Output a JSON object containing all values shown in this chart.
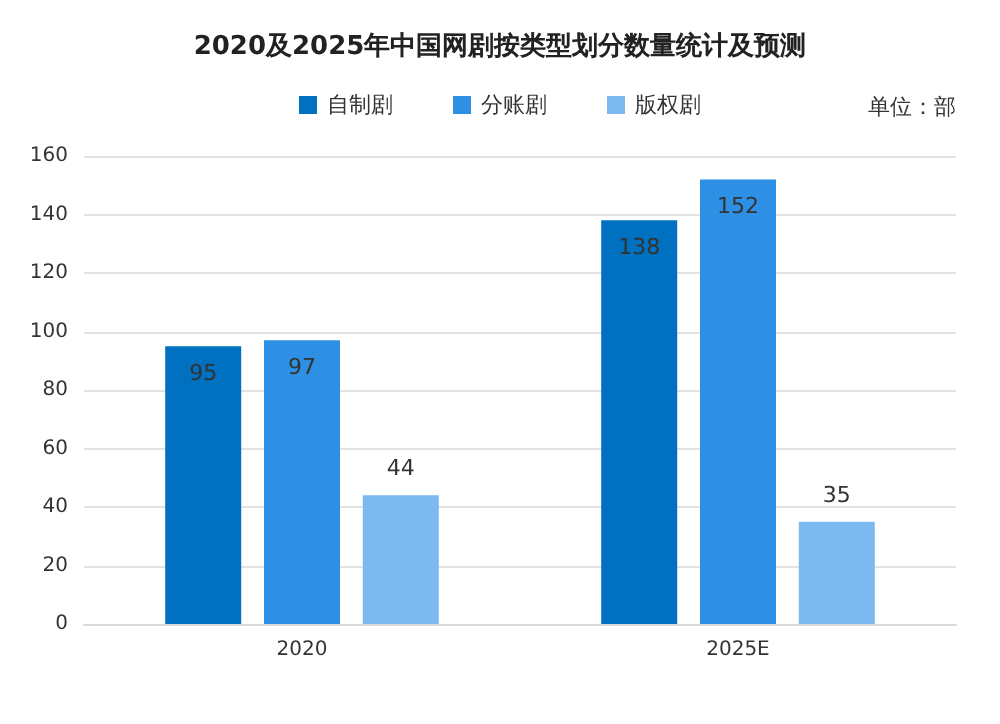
{
  "chart_data": {
    "type": "bar",
    "title": "2020及2025年中国网剧按类型划分数量统计及预测",
    "categories": [
      "2020",
      "2025E"
    ],
    "series": [
      {
        "name": "自制剧",
        "color": "#0070c0",
        "values": [
          95,
          138
        ]
      },
      {
        "name": "分账剧",
        "color": "#2e90e4",
        "values": [
          97,
          152
        ]
      },
      {
        "name": "版权剧",
        "color": "#7cb9ee",
        "values": [
          44,
          35
        ]
      }
    ],
    "ylim": [
      0,
      160
    ],
    "yticks": [
      0,
      20,
      40,
      60,
      80,
      100,
      120,
      140,
      160
    ],
    "grid": "y",
    "legend": "top",
    "data_labels": true,
    "annotations": [
      "单位：部"
    ]
  }
}
